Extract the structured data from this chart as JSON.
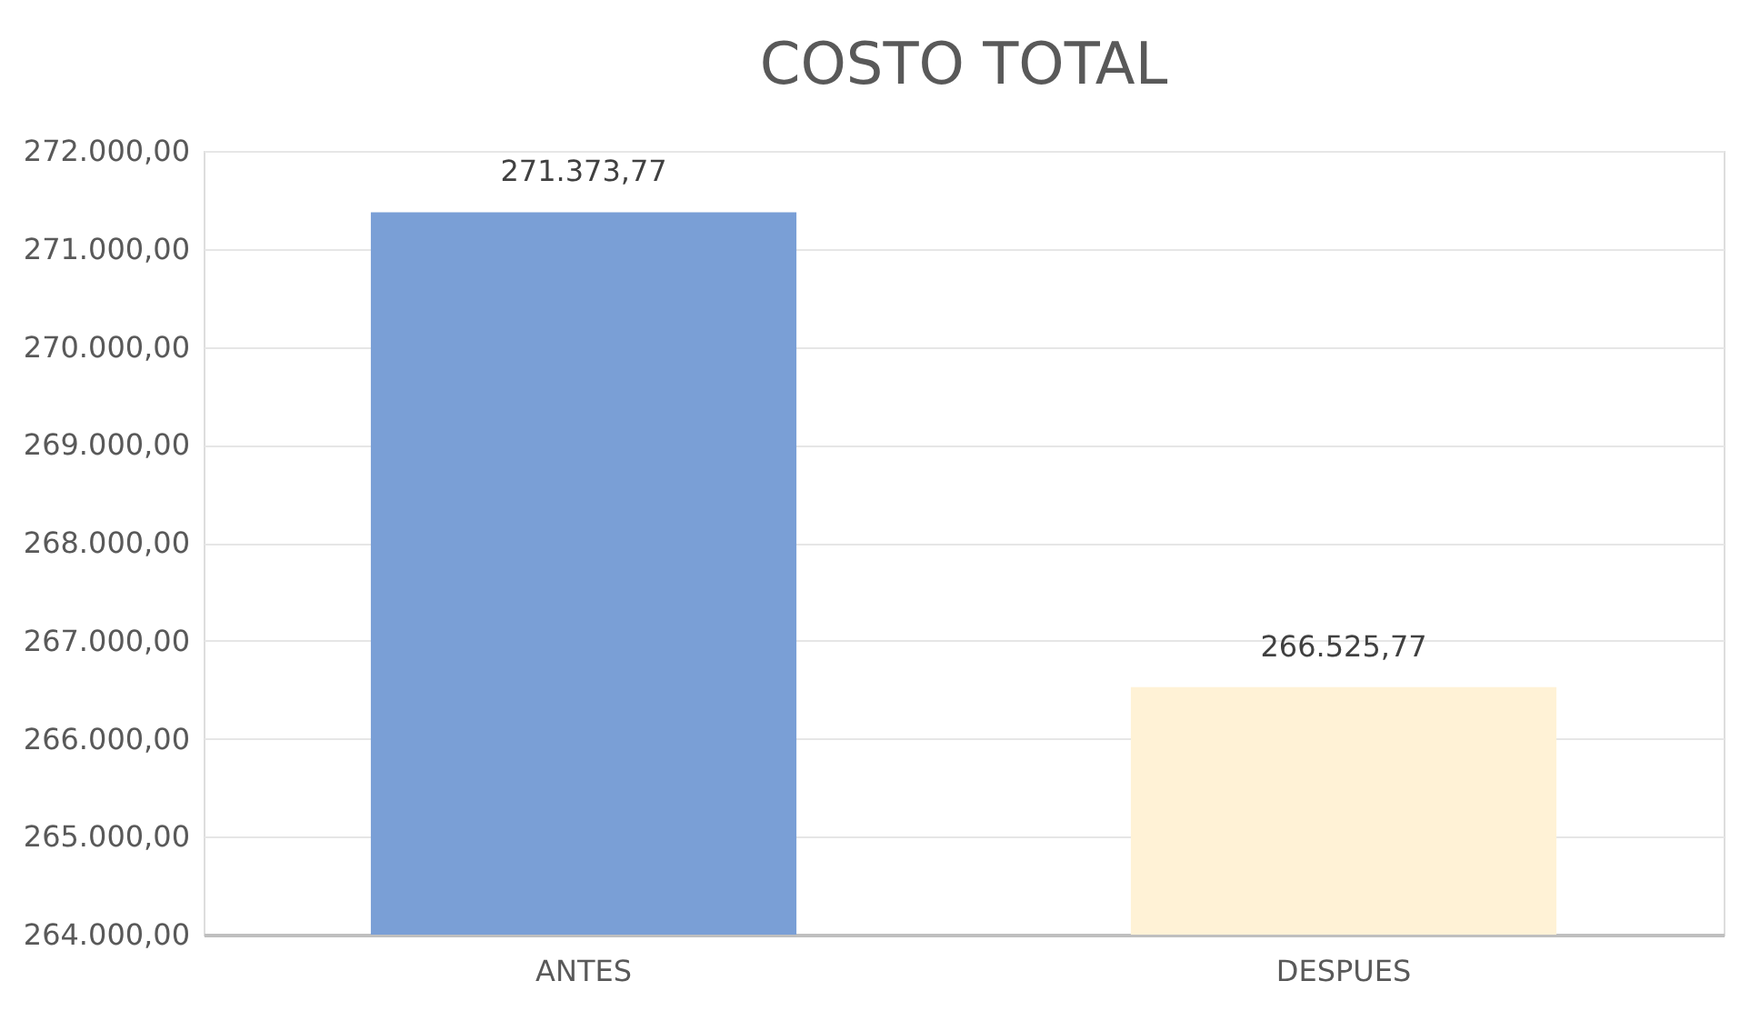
{
  "chart_data": {
    "type": "bar",
    "title": "COSTO TOTAL",
    "categories": [
      "ANTES",
      "DESPUES"
    ],
    "values": [
      271373.77,
      266525.77
    ],
    "colors": [
      "#7a9fd6",
      "#fff2d6"
    ],
    "value_labels": [
      "271.373,77",
      "266.525,77"
    ],
    "ylim": [
      264000,
      272000
    ],
    "yticks": [
      {
        "value": 264000,
        "label": "264.000,00"
      },
      {
        "value": 265000,
        "label": "265.000,00"
      },
      {
        "value": 266000,
        "label": "266.000,00"
      },
      {
        "value": 267000,
        "label": "267.000,00"
      },
      {
        "value": 268000,
        "label": "268.000,00"
      },
      {
        "value": 269000,
        "label": "269.000,00"
      },
      {
        "value": 270000,
        "label": "270.000,00"
      },
      {
        "value": 271000,
        "label": "271.000,00"
      },
      {
        "value": 272000,
        "label": "272.000,00"
      }
    ],
    "grid": "y"
  }
}
